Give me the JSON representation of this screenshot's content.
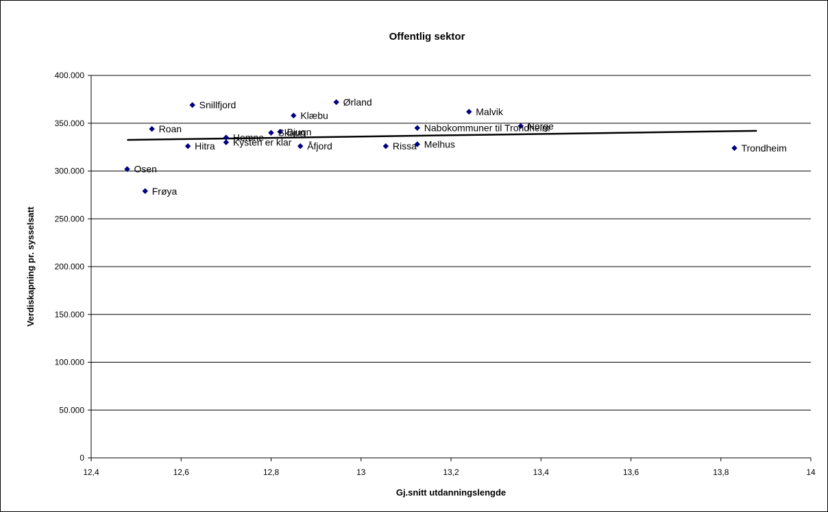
{
  "chart_data": {
    "type": "scatter",
    "title": "Offentlig sektor",
    "xlabel": "Gj.snitt utdanningslengde",
    "ylabel": "Verdiskapning pr. sysselsatt",
    "xlim": [
      12.4,
      14
    ],
    "ylim": [
      0,
      400000
    ],
    "x_ticks": [
      "12,4",
      "12,6",
      "12,8",
      "13",
      "13,2",
      "13,4",
      "13,6",
      "13,8",
      "14"
    ],
    "y_ticks": [
      "0",
      "50.000",
      "100.000",
      "150.000",
      "200.000",
      "250.000",
      "300.000",
      "350.000",
      "400.000"
    ],
    "grid": "horizontal",
    "marker_color": "#000080",
    "trendline": {
      "x": [
        12.48,
        13.88
      ],
      "y": [
        332500,
        342000
      ],
      "color": "#000000"
    },
    "points": [
      {
        "label": "Osen",
        "x": 12.48,
        "y": 302000
      },
      {
        "label": "Frøya",
        "x": 12.52,
        "y": 279000
      },
      {
        "label": "Roan",
        "x": 12.535,
        "y": 344000
      },
      {
        "label": "Hitra",
        "x": 12.615,
        "y": 326000
      },
      {
        "label": "Snillfjord",
        "x": 12.625,
        "y": 369000
      },
      {
        "label": "Hemne",
        "x": 12.7,
        "y": 335000
      },
      {
        "label": "Kysten er klar",
        "x": 12.7,
        "y": 330000
      },
      {
        "label": "Skaun",
        "x": 12.8,
        "y": 340000
      },
      {
        "label": "Bjugn",
        "x": 12.82,
        "y": 341000
      },
      {
        "label": "Klæbu",
        "x": 12.85,
        "y": 358000
      },
      {
        "label": "Åfjord",
        "x": 12.865,
        "y": 326000
      },
      {
        "label": "Ørland",
        "x": 12.945,
        "y": 372000
      },
      {
        "label": "Rissa",
        "x": 13.055,
        "y": 326000
      },
      {
        "label": "Nabokommuner til Trondheim",
        "x": 13.125,
        "y": 345000
      },
      {
        "label": "Melhus",
        "x": 13.125,
        "y": 328000
      },
      {
        "label": "Malvik",
        "x": 13.24,
        "y": 362000
      },
      {
        "label": "Norge",
        "x": 13.355,
        "y": 347000
      },
      {
        "label": "Trondheim",
        "x": 13.83,
        "y": 324000
      }
    ]
  }
}
